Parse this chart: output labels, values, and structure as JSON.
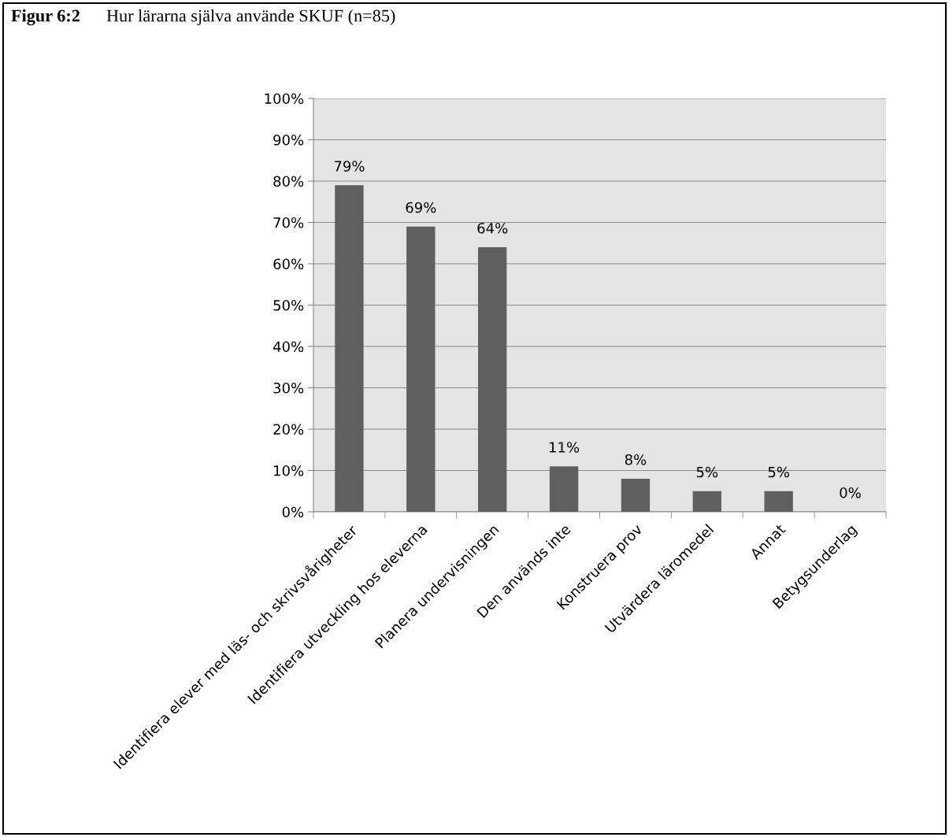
{
  "chart_data": {
    "type": "bar",
    "title": "Figur 6:2",
    "subtitle": "Hur lärarna själva använde SKUF (n=85)",
    "categories": [
      "Identifiera elever med läs- och skrivsvårigheter",
      "Identifiera utveckling hos eleverna",
      "Planera undervisningen",
      "Den används inte",
      "Konstruera prov",
      "Utvärdera läromedel",
      "Annat",
      "Betygsunderlag"
    ],
    "values": [
      79,
      69,
      64,
      11,
      8,
      5,
      5,
      0
    ],
    "value_labels": [
      "79%",
      "69%",
      "64%",
      "11%",
      "8%",
      "5%",
      "5%",
      "0%"
    ],
    "color": "#5f5f5f",
    "ylim": [
      0,
      100
    ],
    "yticks": [
      {
        "value": 0,
        "label": "0%"
      },
      {
        "value": 10,
        "label": "10%"
      },
      {
        "value": 20,
        "label": "20%"
      },
      {
        "value": 30,
        "label": "30%"
      },
      {
        "value": 40,
        "label": "40%"
      },
      {
        "value": 50,
        "label": "50%"
      },
      {
        "value": 60,
        "label": "60%"
      },
      {
        "value": 70,
        "label": "70%"
      },
      {
        "value": 80,
        "label": "80%"
      },
      {
        "value": 90,
        "label": "90%"
      },
      {
        "value": 100,
        "label": "100%"
      }
    ],
    "grid": "y",
    "legend": false
  }
}
